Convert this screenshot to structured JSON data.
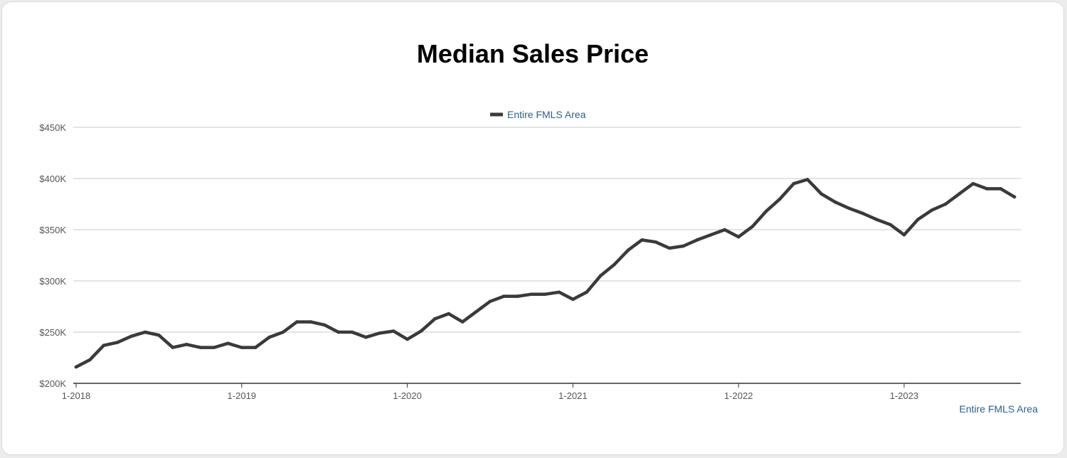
{
  "chart_data": {
    "type": "line",
    "title": "Median Sales Price",
    "legend": "Entire FMLS Area",
    "footer_label": "Entire FMLS Area",
    "legend_position": "top-center",
    "grid": true,
    "xlabel": "",
    "ylabel": "",
    "ylim": [
      200000,
      450000
    ],
    "y_ticks": [
      {
        "value": 200000,
        "label": "$200K"
      },
      {
        "value": 250000,
        "label": "$250K"
      },
      {
        "value": 300000,
        "label": "$300K"
      },
      {
        "value": 350000,
        "label": "$350K"
      },
      {
        "value": 400000,
        "label": "$400K"
      },
      {
        "value": 450000,
        "label": "$450K"
      }
    ],
    "x_ticks": [
      "1-2018",
      "1-2019",
      "1-2020",
      "1-2021",
      "1-2022",
      "1-2023"
    ],
    "line_color": "#3a3a3a",
    "series": [
      {
        "name": "Entire FMLS Area",
        "x": [
          "1-2018",
          "2-2018",
          "3-2018",
          "4-2018",
          "5-2018",
          "6-2018",
          "7-2018",
          "8-2018",
          "9-2018",
          "10-2018",
          "11-2018",
          "12-2018",
          "1-2019",
          "2-2019",
          "3-2019",
          "4-2019",
          "5-2019",
          "6-2019",
          "7-2019",
          "8-2019",
          "9-2019",
          "10-2019",
          "11-2019",
          "12-2019",
          "1-2020",
          "2-2020",
          "3-2020",
          "4-2020",
          "5-2020",
          "6-2020",
          "7-2020",
          "8-2020",
          "9-2020",
          "10-2020",
          "11-2020",
          "12-2020",
          "1-2021",
          "2-2021",
          "3-2021",
          "4-2021",
          "5-2021",
          "6-2021",
          "7-2021",
          "8-2021",
          "9-2021",
          "10-2021",
          "11-2021",
          "12-2021",
          "1-2022",
          "2-2022",
          "3-2022",
          "4-2022",
          "5-2022",
          "6-2022",
          "7-2022",
          "8-2022",
          "9-2022",
          "10-2022",
          "11-2022",
          "12-2022",
          "1-2023",
          "2-2023",
          "3-2023",
          "4-2023",
          "5-2023",
          "6-2023",
          "7-2023",
          "8-2023",
          "9-2023"
        ],
        "values": [
          216000,
          223000,
          237000,
          240000,
          246000,
          250000,
          247000,
          235000,
          238000,
          235000,
          235000,
          239000,
          235000,
          235000,
          245000,
          250000,
          260000,
          260000,
          257000,
          250000,
          250000,
          245000,
          249000,
          251000,
          243000,
          251000,
          263000,
          268000,
          260000,
          270000,
          280000,
          285000,
          285000,
          287000,
          287000,
          289000,
          282000,
          289000,
          305000,
          316000,
          330000,
          340000,
          338000,
          332000,
          334000,
          340000,
          345000,
          350000,
          343000,
          353000,
          368000,
          380000,
          395000,
          399000,
          385000,
          377000,
          371000,
          366000,
          360000,
          355000,
          345000,
          360000,
          369000,
          375000,
          385000,
          395000,
          390000,
          390000,
          382000
        ]
      }
    ]
  }
}
